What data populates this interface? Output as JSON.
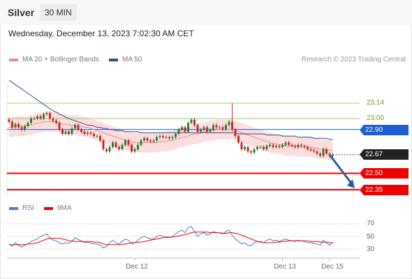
{
  "header": {
    "symbol": "Silver",
    "interval": "30 MIN"
  },
  "datetime": "Wednesday, December 13, 2023 7:02:30 AM CET",
  "legend": {
    "ma20": "MA 20 + Bollinger Bands",
    "ma50": "MA 50",
    "rsi": "RSI",
    "ma9": "9MA"
  },
  "credit": "Research © 2023 Trading Central",
  "colors": {
    "up": "#2e7d32",
    "down": "#c62828",
    "resistance_fill": "#1a5fd6",
    "support": "#ee0000",
    "last": "#222222",
    "band": "#fbd3d3",
    "ma20": "#e98a8a",
    "ma50": "#2b4f8c",
    "rsi": "#5577cc",
    "target_arrow": "#2b5d9c"
  },
  "chart_data": {
    "type": "candlestick",
    "ylim": [
      22.25,
      23.45
    ],
    "levels": [
      {
        "label": "23.14",
        "value": 23.14,
        "style": "green-line"
      },
      {
        "label": "23.00",
        "value": 23.0,
        "style": "green-line"
      },
      {
        "label": "22.90",
        "value": 22.9,
        "style": "blue-tag"
      },
      {
        "label": "22.67",
        "value": 22.67,
        "style": "last-price"
      },
      {
        "label": "22.50",
        "value": 22.5,
        "style": "red-tag"
      },
      {
        "label": "22.35",
        "value": 22.35,
        "style": "red-tag"
      }
    ],
    "closes": [
      22.97,
      22.92,
      22.95,
      22.92,
      22.9,
      22.93,
      22.96,
      23.0,
      23.0,
      23.02,
      23.0,
      23.04,
      23.05,
      23.0,
      22.98,
      22.96,
      22.9,
      22.86,
      22.88,
      22.86,
      22.91,
      22.94,
      22.9,
      22.88,
      22.86,
      22.87,
      22.86,
      22.84,
      22.84,
      22.8,
      22.72,
      22.7,
      22.74,
      22.78,
      22.74,
      22.72,
      22.76,
      22.8,
      22.76,
      22.7,
      22.72,
      22.76,
      22.8,
      22.82,
      22.8,
      22.79,
      22.8,
      22.83,
      22.84,
      22.83,
      22.83,
      22.82,
      22.83,
      22.86,
      22.9,
      22.92,
      22.88,
      22.96,
      22.99,
      22.94,
      22.88,
      22.9,
      22.92,
      22.88,
      22.9,
      22.94,
      22.92,
      22.92,
      22.9,
      22.94,
      22.97,
      22.9,
      22.84,
      22.78,
      22.72,
      22.74,
      22.7,
      22.69,
      22.72,
      22.74,
      22.74,
      22.72,
      22.75,
      22.76,
      22.74,
      22.75,
      22.74,
      22.76,
      22.78,
      22.76,
      22.75,
      22.74,
      22.76,
      22.75,
      22.74,
      22.72,
      22.71,
      22.7,
      22.68,
      22.66,
      22.72,
      22.68,
      22.66,
      22.67
    ],
    "ma20": [
      22.92,
      22.92,
      22.93,
      22.93,
      22.93,
      22.93,
      22.94,
      22.94,
      22.95,
      22.96,
      22.96,
      22.97,
      22.97,
      22.97,
      22.97,
      22.97,
      22.96,
      22.95,
      22.95,
      22.94,
      22.94,
      22.94,
      22.93,
      22.93,
      22.92,
      22.92,
      22.91,
      22.9,
      22.89,
      22.88,
      22.87,
      22.86,
      22.85,
      22.84,
      22.83,
      22.82,
      22.81,
      22.8,
      22.8,
      22.79,
      22.78,
      22.78,
      22.78,
      22.78,
      22.78,
      22.78,
      22.78,
      22.78,
      22.79,
      22.79,
      22.79,
      22.8,
      22.8,
      22.81,
      22.82,
      22.83,
      22.83,
      22.84,
      22.85,
      22.86,
      22.86,
      22.87,
      22.88,
      22.88,
      22.89,
      22.89,
      22.9,
      22.9,
      22.9,
      22.9,
      22.9,
      22.9,
      22.89,
      22.88,
      22.87,
      22.86,
      22.85,
      22.84,
      22.83,
      22.82,
      22.81,
      22.8,
      22.79,
      22.78,
      22.77,
      22.77,
      22.76,
      22.76,
      22.75,
      22.75,
      22.75,
      22.75,
      22.74,
      22.74,
      22.74,
      22.74,
      22.74,
      22.73,
      22.73,
      22.72,
      22.72,
      22.72,
      22.71,
      22.71
    ],
    "band_width": 0.09,
    "ma50": [
      23.35,
      23.33,
      23.31,
      23.29,
      23.27,
      23.25,
      23.23,
      23.21,
      23.19,
      23.17,
      23.15,
      23.13,
      23.11,
      23.09,
      23.07,
      23.06,
      23.04,
      23.03,
      23.01,
      23.0,
      22.99,
      22.98,
      22.97,
      22.96,
      22.95,
      22.94,
      22.94,
      22.93,
      22.92,
      22.92,
      22.91,
      22.91,
      22.9,
      22.9,
      22.89,
      22.89,
      22.89,
      22.88,
      22.88,
      22.88,
      22.88,
      22.88,
      22.87,
      22.87,
      22.87,
      22.87,
      22.87,
      22.87,
      22.87,
      22.87,
      22.87,
      22.87,
      22.87,
      22.87,
      22.87,
      22.87,
      22.87,
      22.87,
      22.87,
      22.87,
      22.87,
      22.87,
      22.87,
      22.87,
      22.87,
      22.87,
      22.87,
      22.87,
      22.87,
      22.87,
      22.87,
      22.87,
      22.87,
      22.86,
      22.86,
      22.86,
      22.86,
      22.86,
      22.86,
      22.86,
      22.86,
      22.86,
      22.85,
      22.85,
      22.85,
      22.85,
      22.85,
      22.84,
      22.84,
      22.84,
      22.84,
      22.84,
      22.83,
      22.83,
      22.83,
      22.83,
      22.83,
      22.82,
      22.82,
      22.82,
      22.82,
      22.82,
      22.81,
      22.81
    ],
    "x_labels": [
      {
        "label": "Dec 12",
        "index": 40
      },
      {
        "label": "Dec 13",
        "index": 87
      },
      {
        "label": "Dec 15",
        "index": 102
      }
    ],
    "rsi": {
      "ticks": [
        70,
        50,
        30
      ],
      "ylim": [
        20,
        80
      ],
      "rsi": [
        38,
        34,
        40,
        36,
        33,
        36,
        38,
        42,
        44,
        46,
        50,
        52,
        54,
        48,
        44,
        43,
        40,
        38,
        40,
        39,
        42,
        48,
        45,
        43,
        40,
        41,
        39,
        38,
        38,
        36,
        32,
        34,
        40,
        44,
        40,
        38,
        42,
        46,
        44,
        38,
        40,
        44,
        48,
        50,
        48,
        46,
        46,
        50,
        52,
        50,
        50,
        48,
        50,
        54,
        58,
        60,
        56,
        64,
        66,
        58,
        50,
        54,
        56,
        52,
        54,
        58,
        56,
        56,
        54,
        58,
        60,
        52,
        46,
        42,
        38,
        40,
        36,
        35,
        40,
        42,
        42,
        40,
        44,
        46,
        43,
        44,
        42,
        44,
        46,
        44,
        43,
        42,
        44,
        43,
        42,
        40,
        40,
        39,
        38,
        36,
        44,
        40,
        36,
        40
      ],
      "ma9": [
        37,
        37,
        37,
        37,
        37,
        37,
        38,
        38,
        39,
        40,
        42,
        44,
        46,
        47,
        47,
        47,
        47,
        46,
        45,
        43,
        43,
        42,
        42,
        42,
        42,
        42,
        42,
        41,
        41,
        40,
        38,
        37,
        37,
        37,
        37,
        37,
        37,
        38,
        39,
        40,
        40,
        41,
        41,
        42,
        43,
        44,
        45,
        46,
        47,
        48,
        48,
        49,
        49,
        50,
        51,
        52,
        53,
        54,
        56,
        57,
        57,
        57,
        57,
        57,
        56,
        56,
        56,
        56,
        55,
        55,
        56,
        56,
        55,
        54,
        52,
        50,
        48,
        46,
        44,
        42,
        41,
        40,
        40,
        40,
        40,
        41,
        41,
        42,
        42,
        43,
        43,
        43,
        43,
        43,
        43,
        43,
        42,
        42,
        42,
        41,
        41,
        41,
        40,
        40
      ]
    }
  }
}
